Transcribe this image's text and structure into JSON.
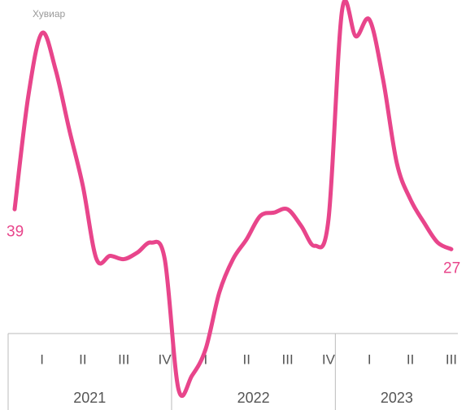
{
  "chart_data": {
    "type": "line",
    "axis_label": "Хувиар",
    "color": "#e8458b",
    "years": [
      {
        "label": "2021",
        "quarters": [
          "I",
          "II",
          "III",
          "IV"
        ]
      },
      {
        "label": "2022",
        "quarters": [
          "I",
          "II",
          "III",
          "IV"
        ]
      },
      {
        "label": "2023",
        "quarters": [
          "I",
          "II",
          "III"
        ]
      }
    ],
    "values": [
      39,
      73,
      92,
      81,
      63,
      46,
      24,
      25,
      24,
      26,
      29,
      24,
      -15,
      -11,
      -3,
      14,
      24,
      30,
      37,
      38,
      39,
      34,
      28,
      36,
      99,
      91,
      96,
      78,
      53,
      42,
      35,
      29,
      27
    ]
  }
}
